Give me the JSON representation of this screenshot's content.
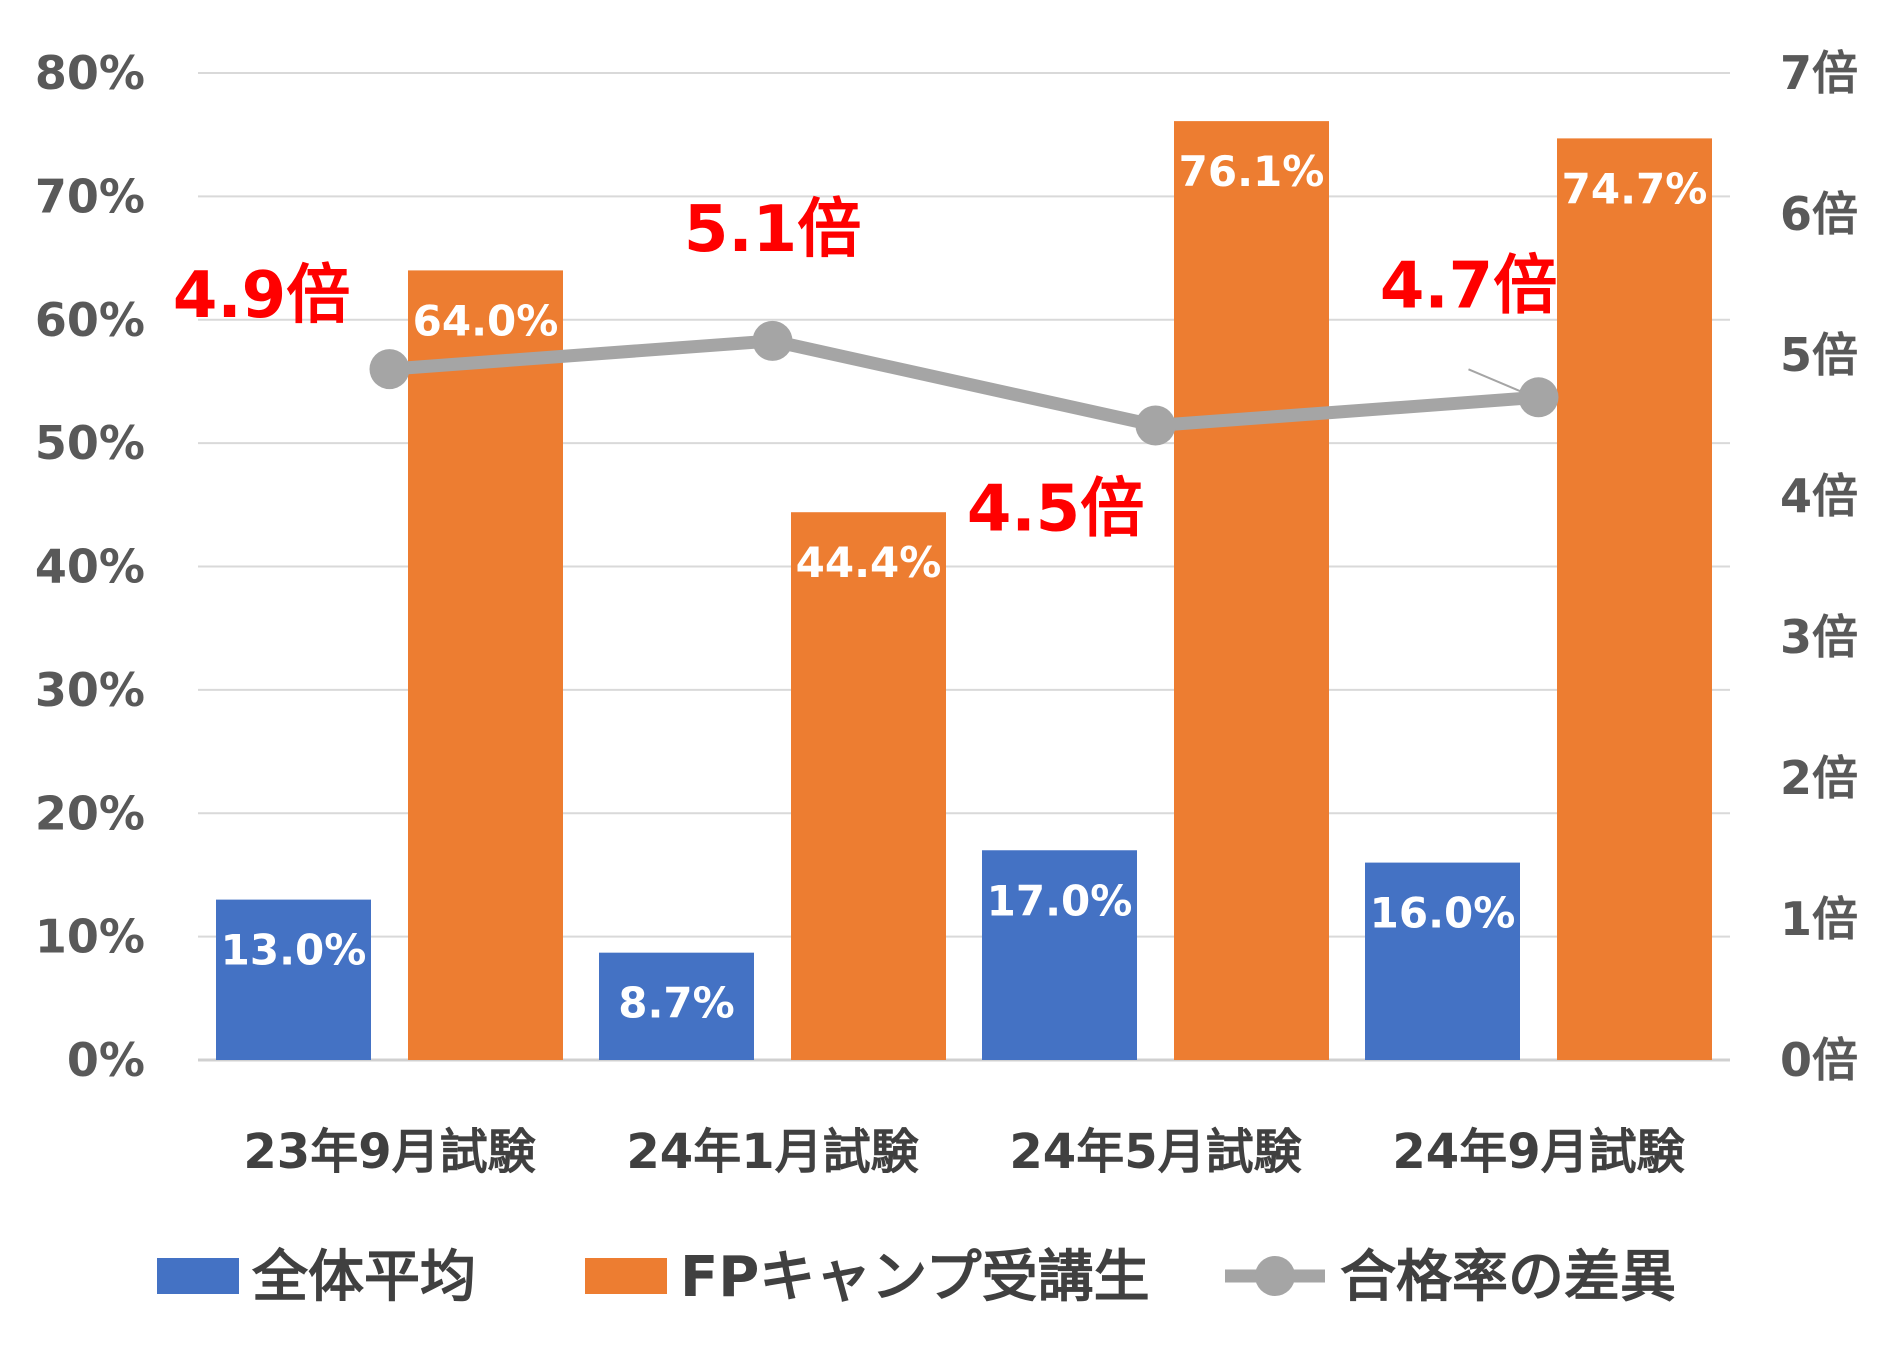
{
  "chart_data": {
    "type": "bar",
    "categories": [
      "23年9月試験",
      "24年1月試験",
      "24年5月試験",
      "24年9月試験"
    ],
    "series": [
      {
        "name": "全体平均",
        "type": "bar",
        "axis": "left",
        "color": "#4472c4",
        "values": [
          13.0,
          8.7,
          17.0,
          16.0
        ],
        "labels": [
          "13.0%",
          "8.7%",
          "17.0%",
          "16.0%"
        ]
      },
      {
        "name": "FPキャンプ受講生",
        "type": "bar",
        "axis": "left",
        "color": "#ed7d31",
        "values": [
          64.0,
          44.4,
          76.1,
          74.7
        ],
        "labels": [
          "64.0%",
          "44.4%",
          "76.1%",
          "74.7%"
        ]
      },
      {
        "name": "合格率の差異",
        "type": "line",
        "axis": "right",
        "color": "#a5a5a5",
        "values": [
          4.9,
          5.1,
          4.5,
          4.7
        ],
        "labels": [
          "4.9倍",
          "5.1倍",
          "4.5倍",
          "4.7倍"
        ]
      }
    ],
    "y_left": {
      "ylim": [
        0,
        80
      ],
      "ticks": [
        "0%",
        "10%",
        "20%",
        "30%",
        "40%",
        "50%",
        "60%",
        "70%",
        "80%"
      ]
    },
    "y_right": {
      "ylim": [
        0,
        7
      ],
      "ticks": [
        "0倍",
        "1倍",
        "2倍",
        "3倍",
        "4倍",
        "5倍",
        "6倍",
        "7倍"
      ]
    },
    "ratio_label_color": "#ff0000",
    "grid": true,
    "legend_position": "bottom"
  }
}
